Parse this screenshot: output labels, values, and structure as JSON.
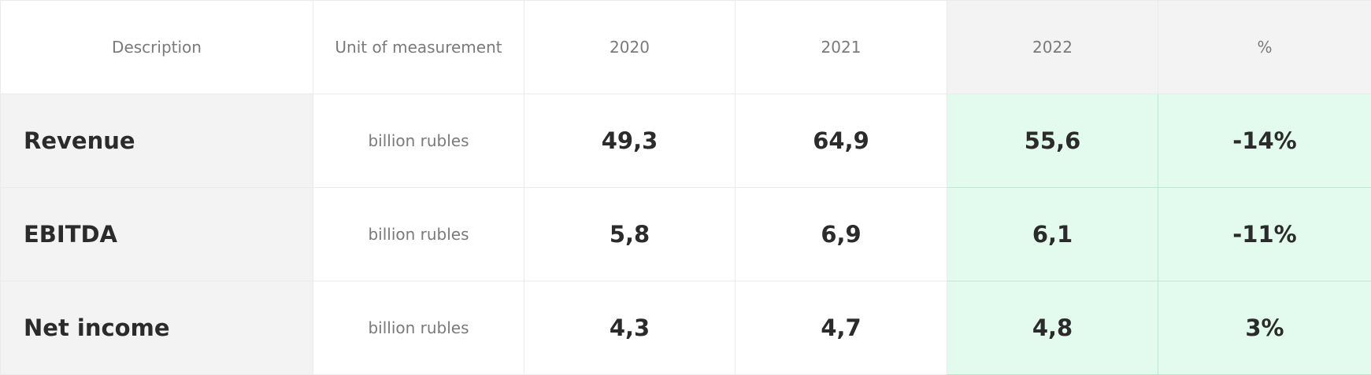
{
  "table": {
    "headers": {
      "description": "Description",
      "unit": "Unit of measurement",
      "y2020": "2020",
      "y2021": "2021",
      "y2022": "2022",
      "percent": "%"
    },
    "rows": [
      {
        "description": "Revenue",
        "unit": "billion rubles",
        "y2020": "49,3",
        "y2021": "64,9",
        "y2022": "55,6",
        "percent": "-14%"
      },
      {
        "description": "EBITDA",
        "unit": "billion rubles",
        "y2020": "5,8",
        "y2021": "6,9",
        "y2022": "6,1",
        "percent": "-11%"
      },
      {
        "description": "Net income",
        "unit": "billion rubles",
        "y2020": "4,3",
        "y2021": "4,7",
        "y2022": "4,8",
        "percent": "3%"
      }
    ]
  },
  "colors": {
    "highlight_fill": "#e2fbee",
    "highlight_border": "#c2e6d2",
    "label_fill": "#f3f3f3"
  }
}
